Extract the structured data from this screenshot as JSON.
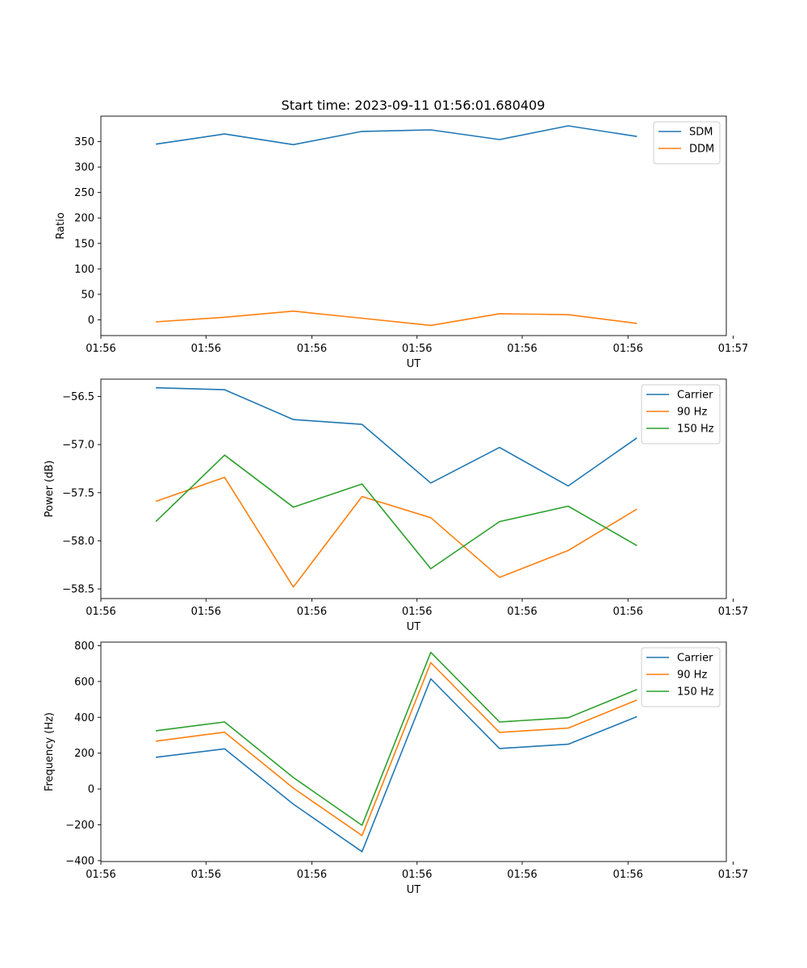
{
  "figure": {
    "title": "Start time: 2023-09-11 01:56:01.680409"
  },
  "chart_data": [
    {
      "type": "line",
      "title": "Start time: 2023-09-11 01:56:01.680409",
      "xlabel": "UT",
      "ylabel": "Ratio",
      "x": [
        1,
        2,
        3,
        4,
        5,
        6,
        7,
        8
      ],
      "xlim": [
        0.2,
        9.3
      ],
      "x_ticks": [
        0.2,
        1.73,
        3.27,
        4.8,
        6.33,
        7.87,
        9.4
      ],
      "x_tick_labels": [
        "01:56",
        "01:56",
        "01:56",
        "01:56",
        "01:56",
        "01:56",
        "01:57"
      ],
      "ylim": [
        -31,
        400
      ],
      "y_ticks": [
        0,
        50,
        100,
        150,
        200,
        250,
        300,
        350
      ],
      "y_tick_labels": [
        "0",
        "50",
        "100",
        "150",
        "200",
        "250",
        "300",
        "350"
      ],
      "legend_position": "top-right",
      "series": [
        {
          "name": "SDM",
          "color": "#1f77b4",
          "values": [
            345,
            365,
            344,
            370,
            373,
            354,
            381,
            360
          ]
        },
        {
          "name": "DDM",
          "color": "#ff7f0e",
          "values": [
            -4,
            5,
            17,
            3,
            -11,
            12,
            10,
            -7
          ]
        }
      ]
    },
    {
      "type": "line",
      "title": "",
      "xlabel": "UT",
      "ylabel": "Power (dB)",
      "x": [
        1,
        2,
        3,
        4,
        5,
        6,
        7,
        8
      ],
      "xlim": [
        0.2,
        9.3
      ],
      "x_ticks": [
        0.2,
        1.73,
        3.27,
        4.8,
        6.33,
        7.87,
        9.4
      ],
      "x_tick_labels": [
        "01:56",
        "01:56",
        "01:56",
        "01:56",
        "01:56",
        "01:56",
        "01:57"
      ],
      "ylim": [
        -58.6,
        -56.32
      ],
      "y_ticks": [
        -58.5,
        -58.0,
        -57.5,
        -57.0,
        -56.5
      ],
      "y_tick_labels": [
        "−58.5",
        "−58.0",
        "−57.5",
        "−57.0",
        "−56.5"
      ],
      "legend_position": "top-right",
      "series": [
        {
          "name": "Carrier",
          "color": "#1f77b4",
          "values": [
            -56.41,
            -56.43,
            -56.74,
            -56.79,
            -57.4,
            -57.03,
            -57.43,
            -56.93
          ]
        },
        {
          "name": "90 Hz",
          "color": "#ff7f0e",
          "values": [
            -57.59,
            -57.34,
            -58.48,
            -57.54,
            -57.76,
            -58.38,
            -58.1,
            -57.67
          ]
        },
        {
          "name": "150 Hz",
          "color": "#2ca02c",
          "values": [
            -57.8,
            -57.11,
            -57.65,
            -57.41,
            -58.29,
            -57.8,
            -57.64,
            -58.05
          ]
        }
      ]
    },
    {
      "type": "line",
      "title": "",
      "xlabel": "UT",
      "ylabel": "Frequency (Hz)",
      "x": [
        1,
        2,
        3,
        4,
        5,
        6,
        7,
        8
      ],
      "xlim": [
        0.2,
        9.3
      ],
      "x_ticks": [
        0.2,
        1.73,
        3.27,
        4.8,
        6.33,
        7.87,
        9.4
      ],
      "x_tick_labels": [
        "01:56",
        "01:56",
        "01:56",
        "01:56",
        "01:56",
        "01:56",
        "01:57"
      ],
      "ylim": [
        -405,
        820
      ],
      "y_ticks": [
        -400,
        -200,
        0,
        200,
        400,
        600,
        800
      ],
      "y_tick_labels": [
        "−400",
        "−200",
        "0",
        "200",
        "400",
        "600",
        "800"
      ],
      "legend_position": "top-right",
      "series": [
        {
          "name": "Carrier",
          "color": "#1f77b4",
          "values": [
            177,
            224,
            -85,
            -350,
            615,
            226,
            250,
            404
          ]
        },
        {
          "name": "90 Hz",
          "color": "#ff7f0e",
          "values": [
            267,
            317,
            5,
            -260,
            705,
            316,
            340,
            497
          ]
        },
        {
          "name": "150 Hz",
          "color": "#2ca02c",
          "values": [
            325,
            374,
            64,
            -203,
            763,
            374,
            398,
            555
          ]
        }
      ]
    }
  ]
}
